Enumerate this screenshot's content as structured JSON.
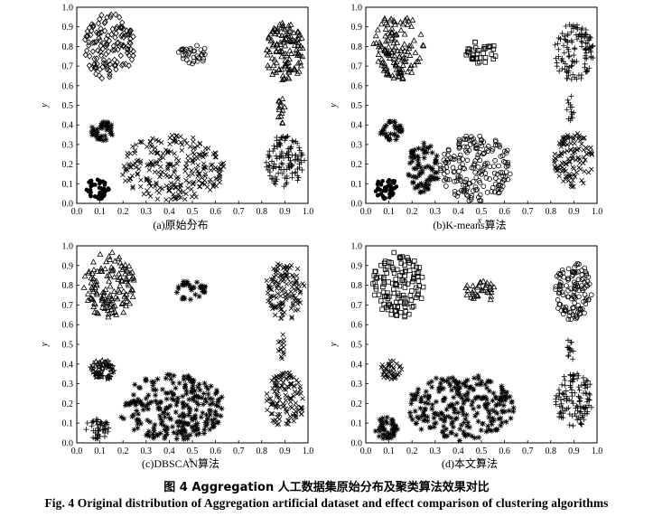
{
  "figure": {
    "caption_cn": "图 4   Aggregation 人工数据集原始分布及聚类算法效果对比",
    "caption_en": "Fig. 4   Original distribution of Aggregation artificial dataset and effect comparison of clustering algorithms"
  },
  "chart_data": [
    {
      "type": "scatter",
      "title": "(a)原始分布",
      "xlabel": "x",
      "ylabel": "y",
      "xlim": [
        0,
        1
      ],
      "ylim": [
        0,
        1
      ],
      "ticks": [
        "0.0",
        "0.1",
        "0.2",
        "0.3",
        "0.4",
        "0.5",
        "0.6",
        "0.7",
        "0.8",
        "0.9",
        "1.0"
      ],
      "series": [
        {
          "marker": "diamond",
          "cx": 0.14,
          "cy": 0.8,
          "rx": 0.11,
          "ry": 0.17,
          "n": 130
        },
        {
          "marker": "circle",
          "cx": 0.5,
          "cy": 0.77,
          "rx": 0.07,
          "ry": 0.06,
          "n": 34
        },
        {
          "marker": "triangle",
          "cx": 0.9,
          "cy": 0.77,
          "rx": 0.085,
          "ry": 0.15,
          "n": 120
        },
        {
          "marker": "triangle",
          "cx": 0.885,
          "cy": 0.48,
          "rx": 0.015,
          "ry": 0.08,
          "n": 14
        },
        {
          "marker": "plus",
          "cx": 0.9,
          "cy": 0.22,
          "rx": 0.085,
          "ry": 0.14,
          "n": 120
        },
        {
          "marker": "star",
          "cx": 0.11,
          "cy": 0.37,
          "rx": 0.05,
          "ry": 0.05,
          "n": 40
        },
        {
          "marker": "cross",
          "cx": 0.41,
          "cy": 0.18,
          "rx": 0.23,
          "ry": 0.17,
          "n": 260
        },
        {
          "marker": "filledcircle",
          "cx": 0.09,
          "cy": 0.075,
          "rx": 0.05,
          "ry": 0.055,
          "n": 45
        }
      ]
    },
    {
      "type": "scatter",
      "title": "(b)K-means算法",
      "xlabel": "x",
      "ylabel": "y",
      "xlim": [
        0,
        1
      ],
      "ylim": [
        0,
        1
      ],
      "ticks": [
        "0.0",
        "0.1",
        "0.2",
        "0.3",
        "0.4",
        "0.5",
        "0.6",
        "0.7",
        "0.8",
        "0.9",
        "1.0"
      ],
      "series": [
        {
          "marker": "triangle",
          "cx": 0.14,
          "cy": 0.8,
          "rx": 0.11,
          "ry": 0.17,
          "n": 130
        },
        {
          "marker": "square",
          "cx": 0.5,
          "cy": 0.77,
          "rx": 0.07,
          "ry": 0.06,
          "n": 34
        },
        {
          "marker": "plus",
          "cx": 0.9,
          "cy": 0.77,
          "rx": 0.085,
          "ry": 0.15,
          "n": 120
        },
        {
          "marker": "plus",
          "cx": 0.885,
          "cy": 0.48,
          "rx": 0.015,
          "ry": 0.08,
          "n": 14
        },
        {
          "marker": "cross",
          "cx": 0.9,
          "cy": 0.22,
          "rx": 0.085,
          "ry": 0.14,
          "n": 120
        },
        {
          "marker": "star",
          "cx": 0.11,
          "cy": 0.37,
          "rx": 0.05,
          "ry": 0.05,
          "n": 40
        },
        {
          "marker": "star",
          "cx": 0.25,
          "cy": 0.18,
          "rx": 0.07,
          "ry": 0.13,
          "n": 80
        },
        {
          "marker": "circle",
          "cx": 0.48,
          "cy": 0.18,
          "rx": 0.16,
          "ry": 0.17,
          "n": 190
        },
        {
          "marker": "filledcircle",
          "cx": 0.09,
          "cy": 0.075,
          "rx": 0.05,
          "ry": 0.055,
          "n": 45
        }
      ]
    },
    {
      "type": "scatter",
      "title": "(c)DBSCAN算法",
      "xlabel": "x",
      "ylabel": "y",
      "xlim": [
        0,
        1
      ],
      "ylim": [
        0,
        1
      ],
      "ticks": [
        "0.0",
        "0.1",
        "0.2",
        "0.3",
        "0.4",
        "0.5",
        "0.6",
        "0.7",
        "0.8",
        "0.9",
        "1.0"
      ],
      "series": [
        {
          "marker": "triangle",
          "cx": 0.14,
          "cy": 0.8,
          "rx": 0.11,
          "ry": 0.17,
          "n": 130
        },
        {
          "marker": "star",
          "cx": 0.5,
          "cy": 0.77,
          "rx": 0.07,
          "ry": 0.06,
          "n": 34
        },
        {
          "marker": "cross",
          "cx": 0.9,
          "cy": 0.77,
          "rx": 0.085,
          "ry": 0.15,
          "n": 120
        },
        {
          "marker": "cross",
          "cx": 0.885,
          "cy": 0.48,
          "rx": 0.015,
          "ry": 0.08,
          "n": 14
        },
        {
          "marker": "cross",
          "cx": 0.9,
          "cy": 0.22,
          "rx": 0.085,
          "ry": 0.14,
          "n": 120
        },
        {
          "marker": "star5",
          "cx": 0.11,
          "cy": 0.37,
          "rx": 0.05,
          "ry": 0.05,
          "n": 40
        },
        {
          "marker": "star",
          "cx": 0.41,
          "cy": 0.18,
          "rx": 0.23,
          "ry": 0.17,
          "n": 260
        },
        {
          "marker": "plus",
          "cx": 0.09,
          "cy": 0.075,
          "rx": 0.05,
          "ry": 0.055,
          "n": 45
        }
      ]
    },
    {
      "type": "scatter",
      "title": "(d)本文算法",
      "xlabel": "x",
      "ylabel": "y",
      "xlim": [
        0,
        1
      ],
      "ylim": [
        0,
        1
      ],
      "ticks": [
        "0.0",
        "0.1",
        "0.2",
        "0.3",
        "0.4",
        "0.5",
        "0.6",
        "0.7",
        "0.8",
        "0.9",
        "1.0"
      ],
      "series": [
        {
          "marker": "square",
          "cx": 0.14,
          "cy": 0.8,
          "rx": 0.11,
          "ry": 0.17,
          "n": 130
        },
        {
          "marker": "triangle",
          "cx": 0.5,
          "cy": 0.77,
          "rx": 0.07,
          "ry": 0.06,
          "n": 34
        },
        {
          "marker": "circle",
          "cx": 0.9,
          "cy": 0.77,
          "rx": 0.085,
          "ry": 0.15,
          "n": 120
        },
        {
          "marker": "plus",
          "cx": 0.885,
          "cy": 0.48,
          "rx": 0.015,
          "ry": 0.08,
          "n": 14
        },
        {
          "marker": "plus",
          "cx": 0.9,
          "cy": 0.22,
          "rx": 0.085,
          "ry": 0.14,
          "n": 120
        },
        {
          "marker": "cross",
          "cx": 0.11,
          "cy": 0.37,
          "rx": 0.05,
          "ry": 0.05,
          "n": 40
        },
        {
          "marker": "star",
          "cx": 0.41,
          "cy": 0.18,
          "rx": 0.23,
          "ry": 0.17,
          "n": 260
        },
        {
          "marker": "star",
          "cx": 0.09,
          "cy": 0.075,
          "rx": 0.05,
          "ry": 0.055,
          "n": 45
        }
      ]
    }
  ]
}
